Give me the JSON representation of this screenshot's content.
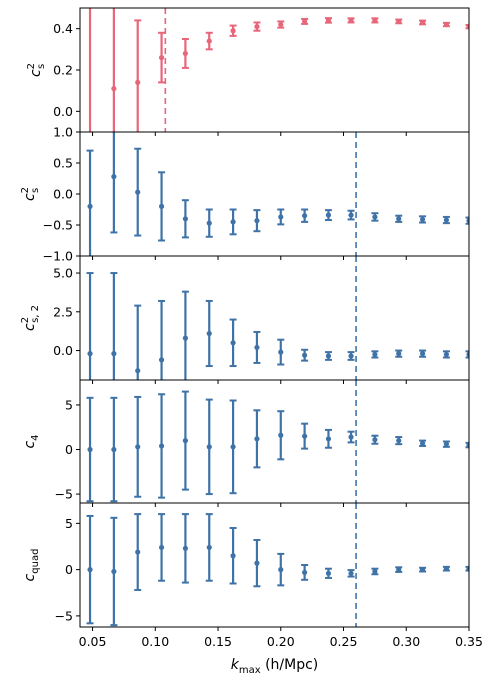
{
  "colors": {
    "red": "#e8667a",
    "blue": "#3f73a8"
  },
  "x_axis": {
    "label_prefix": "k",
    "label_sub": "max",
    "label_suffix": " (h/Mpc)",
    "xlim": [
      0.04,
      0.35
    ],
    "ticks": [
      0.05,
      0.1,
      0.15,
      0.2,
      0.25,
      0.3,
      0.35
    ],
    "tick_labels": [
      "0.05",
      "0.10",
      "0.15",
      "0.20",
      "0.25",
      "0.30",
      "0.35"
    ]
  },
  "chart_data": [
    {
      "type": "scatter",
      "ylabel_main": "c",
      "ylabel_sup": "2",
      "ylabel_sub": "s",
      "ylim": [
        -0.1,
        0.5
      ],
      "yticks": [
        0.0,
        0.2,
        0.4
      ],
      "ytick_labels": [
        "0.0",
        "0.2",
        "0.4"
      ],
      "color": "red",
      "vline": 0.108,
      "x": [
        0.048,
        0.067,
        0.086,
        0.105,
        0.124,
        0.143,
        0.162,
        0.181,
        0.2,
        0.219,
        0.238,
        0.256,
        0.275,
        0.294,
        0.313,
        0.332,
        0.35
      ],
      "y": [
        0.52,
        0.11,
        0.14,
        0.26,
        0.28,
        0.34,
        0.39,
        0.41,
        0.42,
        0.435,
        0.44,
        0.44,
        0.44,
        0.435,
        0.43,
        0.42,
        0.41
      ],
      "err": [
        0.65,
        0.55,
        0.3,
        0.12,
        0.07,
        0.04,
        0.025,
        0.02,
        0.015,
        0.012,
        0.011,
        0.01,
        0.01,
        0.009,
        0.009,
        0.008,
        0.008
      ]
    },
    {
      "type": "scatter",
      "ylabel_main": "c",
      "ylabel_sup": "2",
      "ylabel_sub": "s",
      "ylim": [
        -1.0,
        1.0
      ],
      "yticks": [
        -1.0,
        -0.5,
        0.0,
        0.5,
        1.0
      ],
      "ytick_labels": [
        "−1.0",
        "−0.5",
        "0.0",
        "0.5",
        "1.0"
      ],
      "color": "blue",
      "vline": 0.26,
      "x": [
        0.048,
        0.067,
        0.086,
        0.105,
        0.124,
        0.143,
        0.162,
        0.181,
        0.2,
        0.219,
        0.238,
        0.256,
        0.275,
        0.294,
        0.313,
        0.332,
        0.35
      ],
      "y": [
        -0.2,
        0.28,
        0.03,
        -0.2,
        -0.4,
        -0.47,
        -0.45,
        -0.43,
        -0.37,
        -0.35,
        -0.34,
        -0.34,
        -0.37,
        -0.4,
        -0.41,
        -0.42,
        -0.43
      ],
      "err": [
        0.9,
        0.9,
        0.7,
        0.55,
        0.3,
        0.22,
        0.2,
        0.17,
        0.12,
        0.1,
        0.08,
        0.07,
        0.06,
        0.05,
        0.05,
        0.05,
        0.05
      ]
    },
    {
      "type": "scatter",
      "ylabel_main": "c",
      "ylabel_sup": "2",
      "ylabel_sub": "s, 2",
      "ylim": [
        -1.9,
        6.1
      ],
      "yticks": [
        0.0,
        2.5,
        5.0
      ],
      "ytick_labels": [
        "0.0",
        "2.5",
        "5.0"
      ],
      "color": "blue",
      "vline": 0.26,
      "x": [
        0.048,
        0.067,
        0.086,
        0.105,
        0.124,
        0.143,
        0.162,
        0.181,
        0.2,
        0.219,
        0.238,
        0.256,
        0.275,
        0.294,
        0.313,
        0.332,
        0.35
      ],
      "y": [
        -0.2,
        -0.2,
        -1.3,
        -0.6,
        0.8,
        1.1,
        0.5,
        0.2,
        -0.1,
        -0.3,
        -0.35,
        -0.35,
        -0.25,
        -0.2,
        -0.2,
        -0.25,
        -0.25
      ],
      "err": [
        5.2,
        5.2,
        4.2,
        3.8,
        3.0,
        2.1,
        1.5,
        1.0,
        0.8,
        0.35,
        0.25,
        0.25,
        0.2,
        0.2,
        0.2,
        0.2,
        0.2
      ]
    },
    {
      "type": "scatter",
      "ylabel_main": "c",
      "ylabel_sup": "",
      "ylabel_sub": "4",
      "ylim": [
        -6.0,
        7.8
      ],
      "yticks": [
        -5,
        0,
        5
      ],
      "ytick_labels": [
        "−5",
        "0",
        "5"
      ],
      "color": "blue",
      "vline": 0.26,
      "x": [
        0.048,
        0.067,
        0.086,
        0.105,
        0.124,
        0.143,
        0.162,
        0.181,
        0.2,
        0.219,
        0.238,
        0.256,
        0.275,
        0.294,
        0.313,
        0.332,
        0.35
      ],
      "y": [
        0.0,
        0.0,
        0.3,
        0.4,
        1.0,
        0.3,
        0.3,
        1.2,
        1.6,
        1.5,
        1.2,
        1.4,
        1.1,
        1.0,
        0.7,
        0.6,
        0.5
      ],
      "err": [
        5.8,
        5.8,
        5.6,
        5.8,
        5.5,
        5.3,
        5.2,
        3.2,
        2.7,
        1.4,
        1.0,
        0.6,
        0.45,
        0.4,
        0.3,
        0.3,
        0.25
      ]
    },
    {
      "type": "scatter",
      "ylabel_main": "c",
      "ylabel_sup": "",
      "ylabel_sub": "quad",
      "ylim": [
        -6.2,
        7.2
      ],
      "yticks": [
        -5,
        0,
        5
      ],
      "ytick_labels": [
        "−5",
        "0",
        "5"
      ],
      "color": "blue",
      "vline": 0.26,
      "x": [
        0.048,
        0.067,
        0.086,
        0.105,
        0.124,
        0.143,
        0.162,
        0.181,
        0.2,
        0.219,
        0.238,
        0.256,
        0.275,
        0.294,
        0.313,
        0.332,
        0.35
      ],
      "y": [
        0.0,
        -0.2,
        1.9,
        2.4,
        2.3,
        2.4,
        1.5,
        0.7,
        0.0,
        -0.3,
        -0.4,
        -0.4,
        -0.2,
        0.0,
        0.0,
        0.1,
        0.1
      ],
      "err": [
        5.8,
        5.8,
        4.1,
        3.6,
        3.7,
        3.6,
        3.0,
        2.5,
        1.7,
        0.8,
        0.5,
        0.35,
        0.3,
        0.25,
        0.2,
        0.2,
        0.2
      ]
    }
  ]
}
